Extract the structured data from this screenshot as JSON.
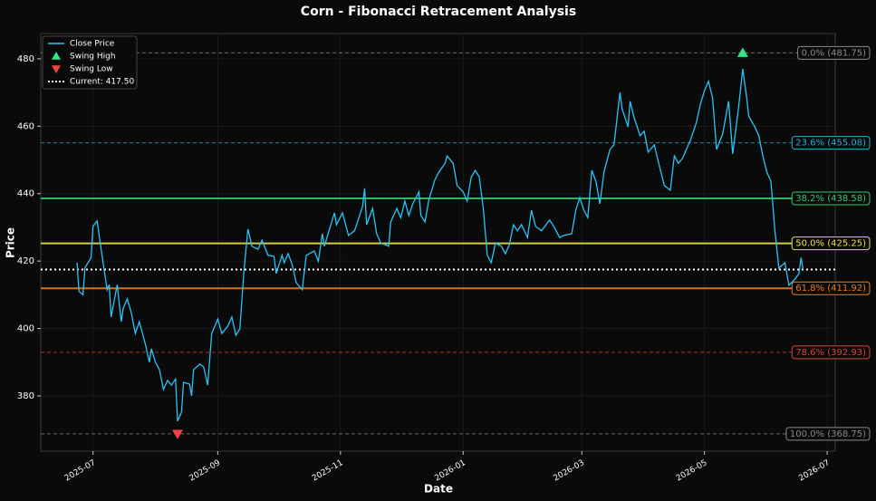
{
  "chart_data": {
    "type": "line",
    "title": "Corn - Fibonacci Retracement Analysis",
    "xlabel": "Date",
    "ylabel": "Price",
    "x": [
      "2025-06-23",
      "2025-06-24",
      "2025-06-26",
      "2025-06-27",
      "2025-06-30",
      "2025-07-01",
      "2025-07-03",
      "2025-07-06",
      "2025-07-08",
      "2025-07-09",
      "2025-07-10",
      "2025-07-13",
      "2025-07-15",
      "2025-07-16",
      "2025-07-18",
      "2025-07-20",
      "2025-07-22",
      "2025-07-24",
      "2025-07-27",
      "2025-07-29",
      "2025-07-30",
      "2025-08-01",
      "2025-08-03",
      "2025-08-05",
      "2025-08-07",
      "2025-08-09",
      "2025-08-11",
      "2025-08-12",
      "2025-08-14",
      "2025-08-15",
      "2025-08-18",
      "2025-08-19",
      "2025-08-20",
      "2025-08-23",
      "2025-08-25",
      "2025-08-27",
      "2025-08-29",
      "2025-09-01",
      "2025-09-03",
      "2025-09-06",
      "2025-09-08",
      "2025-09-10",
      "2025-09-12",
      "2025-09-14",
      "2025-09-16",
      "2025-09-18",
      "2025-09-21",
      "2025-09-23",
      "2025-09-26",
      "2025-09-29",
      "2025-09-30",
      "2025-10-03",
      "2025-10-04",
      "2025-10-06",
      "2025-10-08",
      "2025-10-10",
      "2025-10-13",
      "2025-10-15",
      "2025-10-19",
      "2025-10-21",
      "2025-10-23",
      "2025-10-24",
      "2025-10-27",
      "2025-10-29",
      "2025-10-30",
      "2025-11-02",
      "2025-11-05",
      "2025-11-08",
      "2025-11-12",
      "2025-11-13",
      "2025-11-14",
      "2025-11-17",
      "2025-11-19",
      "2025-11-21",
      "2025-11-25",
      "2025-11-26",
      "2025-11-29",
      "2025-12-01",
      "2025-12-03",
      "2025-12-05",
      "2025-12-07",
      "2025-12-10",
      "2025-12-11",
      "2025-12-13",
      "2025-12-15",
      "2025-12-18",
      "2025-12-20",
      "2025-12-23",
      "2025-12-24",
      "2025-12-27",
      "2025-12-29",
      "2026-01-01",
      "2026-01-03",
      "2026-01-05",
      "2026-01-07",
      "2026-01-09",
      "2026-01-11",
      "2026-01-13",
      "2026-01-15",
      "2026-01-17",
      "2026-01-20",
      "2026-01-22",
      "2026-01-24",
      "2026-01-26",
      "2026-01-28",
      "2026-01-30",
      "2026-02-02",
      "2026-02-04",
      "2026-02-06",
      "2026-02-09",
      "2026-02-13",
      "2026-02-15",
      "2026-02-18",
      "2026-02-20",
      "2026-02-24",
      "2026-02-26",
      "2026-02-28",
      "2026-03-02",
      "2026-03-04",
      "2026-03-06",
      "2026-03-08",
      "2026-03-10",
      "2026-03-12",
      "2026-03-15",
      "2026-03-17",
      "2026-03-20",
      "2026-03-21",
      "2026-03-24",
      "2026-03-25",
      "2026-03-27",
      "2026-03-30",
      "2026-04-01",
      "2026-04-03",
      "2026-04-06",
      "2026-04-08",
      "2026-04-11",
      "2026-04-14",
      "2026-04-16",
      "2026-04-18",
      "2026-04-20",
      "2026-04-23",
      "2026-04-24",
      "2026-04-27",
      "2026-04-29",
      "2026-05-01",
      "2026-05-03",
      "2026-05-05",
      "2026-05-07",
      "2026-05-10",
      "2026-05-13",
      "2026-05-15",
      "2026-05-18",
      "2026-05-20",
      "2026-05-22",
      "2026-05-23",
      "2026-05-26",
      "2026-05-28",
      "2026-05-30",
      "2026-06-01",
      "2026-06-03",
      "2026-06-05",
      "2026-06-07",
      "2026-06-09",
      "2026-06-10",
      "2026-06-12",
      "2026-06-15",
      "2026-06-17",
      "2026-06-18",
      "2026-06-19"
    ],
    "series": [
      {
        "name": "Close Price",
        "color": "#29c5f6",
        "values": [
          419.5,
          411,
          410,
          418,
          421,
          430.3,
          431.9,
          419.5,
          411.5,
          413,
          403.4,
          413,
          402,
          406,
          408.8,
          404.7,
          398.5,
          402,
          395.3,
          390,
          394,
          390,
          387.8,
          381.9,
          384.6,
          383.2,
          385,
          372.5,
          375.2,
          384,
          383.5,
          380,
          387.8,
          389.4,
          388.6,
          383.2,
          398.5,
          402.8,
          398.5,
          400.7,
          403.4,
          398,
          399.9,
          416.8,
          429.5,
          424.4,
          423.5,
          426.2,
          421.7,
          421.4,
          416.3,
          421.7,
          419.5,
          422.2,
          419,
          413.6,
          411.5,
          421.7,
          423,
          420,
          428.1,
          424.4,
          430.3,
          434.3,
          430.8,
          434.3,
          427.6,
          429,
          436.2,
          441.6,
          430.8,
          435.6,
          428.1,
          425.4,
          424.4,
          431.6,
          435.6,
          432.9,
          437.8,
          433.5,
          437,
          440.5,
          433.5,
          431.6,
          438.3,
          444.2,
          446.4,
          449,
          451.2,
          449,
          442.4,
          440.5,
          437.8,
          444.8,
          446.9,
          445,
          435.6,
          421.7,
          419.5,
          425.4,
          424.4,
          422.2,
          424.9,
          430.8,
          429,
          430.8,
          427,
          435.1,
          430.3,
          429,
          432.2,
          430.3,
          427,
          427.6,
          428.1,
          435.1,
          438.8,
          435.1,
          432.9,
          446.9,
          443.7,
          437,
          446.4,
          453.1,
          454.5,
          470,
          465.2,
          459.8,
          467.4,
          462.5,
          457.2,
          458.5,
          452.3,
          454.5,
          449.6,
          442.4,
          441,
          451.2,
          449,
          450.4,
          454.5,
          455.8,
          461.2,
          466.6,
          470.6,
          473.3,
          468.4,
          453.1,
          457.7,
          467.4,
          451.8,
          465.8,
          477,
          468.4,
          463,
          459.8,
          457.2,
          451.2,
          446.4,
          443.7,
          429,
          417.9,
          419,
          419.5,
          412.8,
          414.7,
          416.3,
          421,
          417.5
        ]
      }
    ],
    "markers": [
      {
        "name": "Swing High",
        "x": "2026-05-20",
        "value": 481.75,
        "color": "#2ee88a",
        "shape": "triangle-up"
      },
      {
        "name": "Swing Low",
        "x": "2025-08-12",
        "value": 368.75,
        "color": "#ee4444",
        "shape": "triangle-down"
      }
    ],
    "current": {
      "label": "Current: 417.50",
      "value": 417.5,
      "color": "#ffffff"
    },
    "levels": [
      {
        "label": "0.0% (481.75)",
        "value": 481.75,
        "color": "#8a8a8a",
        "style": "dashed"
      },
      {
        "label": "23.6% (455.08)",
        "value": 455.08,
        "color": "#2aaad8",
        "style": "dashed"
      },
      {
        "label": "38.2% (438.58)",
        "value": 438.58,
        "color": "#2ecc71",
        "style": "solid"
      },
      {
        "label": "50.0% (425.25)",
        "value": 425.25,
        "color": "#e8e04a",
        "style": "solid"
      },
      {
        "label": "61.8% (411.92)",
        "value": 411.92,
        "color": "#e67e22",
        "style": "solid"
      },
      {
        "label": "78.6% (392.93)",
        "value": 392.93,
        "color": "#d9453a",
        "style": "dashed"
      },
      {
        "label": "100.0% (368.75)",
        "value": 368.75,
        "color": "#8a8a8a",
        "style": "dashed"
      }
    ],
    "xlim": [
      "2025-06-05",
      "2026-07-05"
    ],
    "xticks": [
      {
        "value": "2025-07-01",
        "label": "2025-07"
      },
      {
        "value": "2025-09-01",
        "label": "2025-09"
      },
      {
        "value": "2025-11-01",
        "label": "2025-11"
      },
      {
        "value": "2026-01-01",
        "label": "2026-01"
      },
      {
        "value": "2026-03-01",
        "label": "2026-03"
      },
      {
        "value": "2026-05-01",
        "label": "2026-05"
      },
      {
        "value": "2026-07-01",
        "label": "2026-07"
      }
    ],
    "ylim": [
      363.6,
      487.5
    ],
    "yticks": [
      380,
      400,
      420,
      440,
      460,
      480
    ],
    "grid": true,
    "legend": "upper left"
  }
}
